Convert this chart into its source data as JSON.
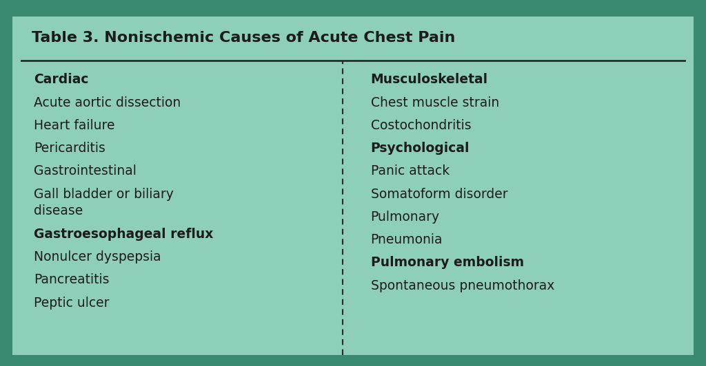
{
  "title": "Table 3. Nonischemic Causes of Acute Chest Pain",
  "background_color": "#8ecfb9",
  "border_top_color": "#3a8a72",
  "border_bottom_color": "#3a8a72",
  "outer_border_color": "#5aaa8a",
  "text_color": "#1c1c1c",
  "title_color": "#1c1c1c",
  "separator_line_color": "#2a2a2a",
  "dashed_line_color": "#2a2a2a",
  "left_column": [
    {
      "text": "Cardiac",
      "bold": true
    },
    {
      "text": "Acute aortic dissection",
      "bold": false
    },
    {
      "text": "Heart failure",
      "bold": false
    },
    {
      "text": "Pericarditis",
      "bold": false
    },
    {
      "text": "Gastrointestinal",
      "bold": false
    },
    {
      "text": "Gall bladder or biliary\ndisease",
      "bold": false
    },
    {
      "text": "Gastroesophageal reflux",
      "bold": true
    },
    {
      "text": "Nonulcer dyspepsia",
      "bold": false
    },
    {
      "text": "Pancreatitis",
      "bold": false
    },
    {
      "text": "Peptic ulcer",
      "bold": false
    }
  ],
  "right_column": [
    {
      "text": "Musculoskeletal",
      "bold": true
    },
    {
      "text": "Chest muscle strain",
      "bold": false
    },
    {
      "text": "Costochondritis",
      "bold": false
    },
    {
      "text": "Psychological",
      "bold": true
    },
    {
      "text": "Panic attack",
      "bold": false
    },
    {
      "text": "Somatoform disorder",
      "bold": false
    },
    {
      "text": "Pulmonary",
      "bold": false
    },
    {
      "text": "Pneumonia",
      "bold": false
    },
    {
      "text": "Pulmonary embolism",
      "bold": true
    },
    {
      "text": "Spontaneous pneumothorax",
      "bold": false
    }
  ],
  "font_size_title": 16,
  "font_size_body": 13.5,
  "fig_width": 10.24,
  "fig_height": 5.32
}
